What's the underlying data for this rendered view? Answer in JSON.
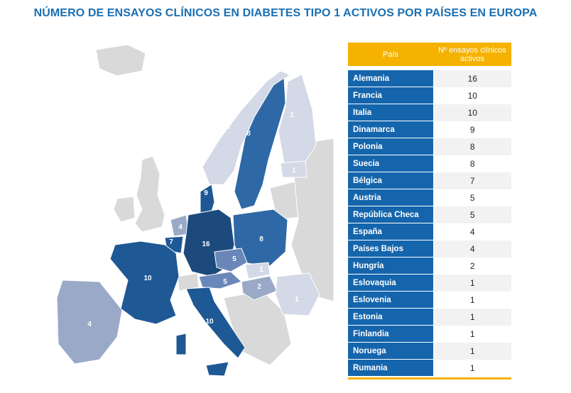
{
  "title": "NÚMERO DE ENSAYOS CLÍNICOS EN DIABETES TIPO 1 ACTIVOS POR PAÍSES EN EUROPA",
  "table": {
    "header_country": "País",
    "header_count": "Nº ensayos clínicos activos"
  },
  "colors": {
    "accent": "#f5b200",
    "title": "#1a6fb3",
    "row_label": "#1565ac",
    "map_scale": [
      "#d3d9e6",
      "#9aa9c7",
      "#6a87b9",
      "#2e68a6",
      "#1e5895",
      "#1c4a7c"
    ],
    "map_none": "#d9d9d9"
  },
  "chart_data": {
    "type": "table",
    "categories": [
      "Alemania",
      "Francia",
      "Italia",
      "Dinamarca",
      "Polonia",
      "Suecia",
      "Bélgica",
      "Austria",
      "República Checa",
      "España",
      "Países Bajos",
      "Hungría",
      "Eslovaquia",
      "Eslovenia",
      "Estonia",
      "Finlandia",
      "Noruega",
      "Rumania"
    ],
    "values": [
      16,
      10,
      10,
      9,
      8,
      8,
      7,
      5,
      5,
      4,
      4,
      2,
      1,
      1,
      1,
      1,
      1,
      1
    ],
    "map_labels": [
      {
        "country": "Alemania",
        "value": "16"
      },
      {
        "country": "Francia",
        "value": "10"
      },
      {
        "country": "Italia",
        "value": "10"
      },
      {
        "country": "Dinamarca",
        "value": "9"
      },
      {
        "country": "Polonia",
        "value": "8"
      },
      {
        "country": "Suecia",
        "value": "8"
      },
      {
        "country": "Bélgica",
        "value": "7"
      },
      {
        "country": "Austria",
        "value": "5"
      },
      {
        "country": "República Checa",
        "value": "5"
      },
      {
        "country": "España",
        "value": "4"
      },
      {
        "country": "Países Bajos",
        "value": "4"
      },
      {
        "country": "Hungría",
        "value": "2"
      },
      {
        "country": "Eslovaquia",
        "value": "1"
      },
      {
        "country": "Estonia",
        "value": "1"
      },
      {
        "country": "Finlandia",
        "value": "1"
      },
      {
        "country": "Noruega",
        "value": "1"
      },
      {
        "country": "Rumania",
        "value": "1"
      }
    ]
  }
}
